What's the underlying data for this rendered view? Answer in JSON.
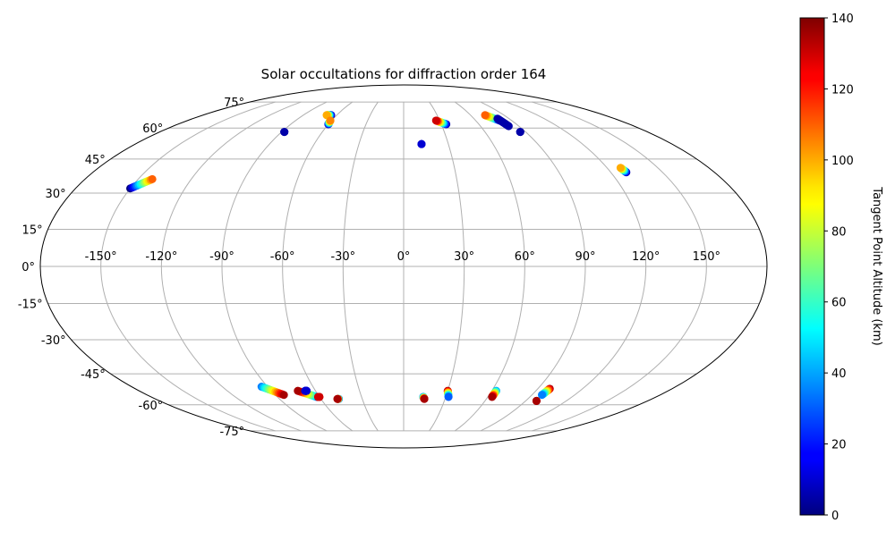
{
  "chart_data": {
    "type": "scatter",
    "projection": "mollweide",
    "title": "Solar occultations for diffraction order 164",
    "lon_ticks": [
      {
        "value": -150,
        "label": "-150°"
      },
      {
        "value": -120,
        "label": "-120°"
      },
      {
        "value": -90,
        "label": "-90°"
      },
      {
        "value": -60,
        "label": "-60°"
      },
      {
        "value": -30,
        "label": "-30°"
      },
      {
        "value": 0,
        "label": "0°"
      },
      {
        "value": 30,
        "label": "30°"
      },
      {
        "value": 60,
        "label": "60°"
      },
      {
        "value": 90,
        "label": "90°"
      },
      {
        "value": 120,
        "label": "120°"
      },
      {
        "value": 150,
        "label": "150°"
      }
    ],
    "lat_ticks": [
      {
        "value": 75,
        "label": "75°"
      },
      {
        "value": 60,
        "label": "60°"
      },
      {
        "value": 45,
        "label": "45°"
      },
      {
        "value": 30,
        "label": "30°"
      },
      {
        "value": 15,
        "label": "15°"
      },
      {
        "value": 0,
        "label": "0°"
      },
      {
        "value": -15,
        "label": "-15°"
      },
      {
        "value": -30,
        "label": "-30°"
      },
      {
        "value": -45,
        "label": "-45°"
      },
      {
        "value": -60,
        "label": "-60°"
      },
      {
        "value": -75,
        "label": "-75°"
      }
    ],
    "grid": true,
    "colorbar": {
      "label": "Tangent Point Altitude (km)",
      "colormap": "jet",
      "range": [
        0,
        140
      ],
      "ticks": [
        {
          "value": 0,
          "label": "0"
        },
        {
          "value": 20,
          "label": "20"
        },
        {
          "value": 40,
          "label": "40"
        },
        {
          "value": 60,
          "label": "60"
        },
        {
          "value": 80,
          "label": "80"
        },
        {
          "value": 100,
          "label": "100"
        },
        {
          "value": 120,
          "label": "120"
        },
        {
          "value": 140,
          "label": "140"
        }
      ]
    },
    "tracks": [
      {
        "lon_start": -150,
        "lat_start": 32,
        "lon_end": -142,
        "lat_end": 36,
        "alt_start": 0,
        "alt_end": 110
      },
      {
        "lon_start": -88,
        "lat_start": 58,
        "lon_end": -88,
        "lat_end": 58,
        "alt_start": 5,
        "alt_end": 5
      },
      {
        "lon_start": -65,
        "lat_start": 67,
        "lon_end": -69,
        "lat_end": 67,
        "alt_start": 5,
        "alt_end": 100
      },
      {
        "lon_start": -60,
        "lat_start": 62,
        "lon_end": -61,
        "lat_end": 64,
        "alt_start": 5,
        "alt_end": 105
      },
      {
        "lon_start": 12,
        "lat_start": 52,
        "lon_end": 12,
        "lat_end": 52,
        "alt_start": 10,
        "alt_end": 10
      },
      {
        "lon_start": 34,
        "lat_start": 62,
        "lon_end": 27,
        "lat_end": 64,
        "alt_start": 5,
        "alt_end": 130
      },
      {
        "lon_start": 80,
        "lat_start": 64,
        "lon_end": 73,
        "lat_end": 67,
        "alt_start": 5,
        "alt_end": 110
      },
      {
        "lon_start": 82,
        "lat_start": 61,
        "lon_end": 80,
        "lat_end": 65,
        "alt_start": 5,
        "alt_end": 5
      },
      {
        "lon_start": 86,
        "lat_start": 58,
        "lon_end": 86,
        "lat_end": 58,
        "alt_start": 5,
        "alt_end": 5
      },
      {
        "lon_start": 129,
        "lat_start": 39,
        "lon_end": 128,
        "lat_end": 41,
        "alt_start": 5,
        "alt_end": 100
      },
      {
        "lon_start": -94,
        "lat_start": -51,
        "lon_end": -84,
        "lat_end": -55,
        "alt_start": 35,
        "alt_end": 135
      },
      {
        "lon_start": -62,
        "lat_start": -56,
        "lon_end": -72,
        "lat_end": -53,
        "alt_start": 30,
        "alt_end": 135
      },
      {
        "lon_start": -66,
        "lat_start": -53,
        "lon_end": -67,
        "lat_end": -53,
        "alt_start": 10,
        "alt_end": 10
      },
      {
        "lon_start": -60,
        "lat_start": -56,
        "lon_end": -61,
        "lat_end": -56,
        "alt_start": 130,
        "alt_end": 130
      },
      {
        "lon_start": -47,
        "lat_start": -57,
        "lon_end": -48,
        "lat_end": -57,
        "alt_start": 20,
        "alt_end": 135
      },
      {
        "lon_start": 14,
        "lat_start": -56,
        "lon_end": 15,
        "lat_end": -57,
        "alt_start": 30,
        "alt_end": 135
      },
      {
        "lon_start": 30,
        "lat_start": -53,
        "lon_end": 32,
        "lat_end": -56,
        "alt_start": 135,
        "alt_end": 30
      },
      {
        "lon_start": 63,
        "lat_start": -53,
        "lon_end": 63,
        "lat_end": -56,
        "alt_start": 40,
        "alt_end": 135
      },
      {
        "lon_start": 98,
        "lat_start": -52,
        "lon_end": 97,
        "lat_end": -55,
        "alt_start": 135,
        "alt_end": 35
      },
      {
        "lon_start": 98,
        "lat_start": -58,
        "lon_end": 98,
        "lat_end": -58,
        "alt_start": 135,
        "alt_end": 135
      }
    ]
  }
}
